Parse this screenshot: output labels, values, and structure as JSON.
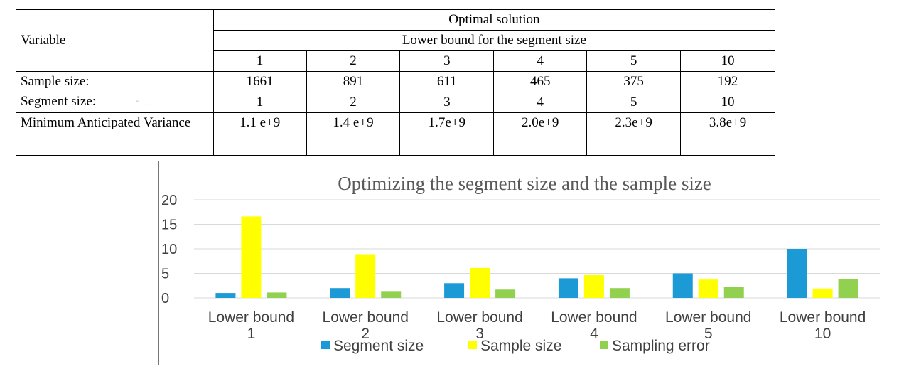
{
  "table": {
    "variable_header": "Variable",
    "optimal_header": "Optimal solution",
    "lower_bound_header": "Lower bound for the segment size",
    "bounds": [
      "1",
      "2",
      "3",
      "4",
      "5",
      "10"
    ],
    "rows": [
      {
        "label": "Sample size:",
        "mark": "\" . . . .",
        "values": [
          "1661",
          "891",
          "611",
          "465",
          "375",
          "192"
        ]
      },
      {
        "label": "Segment size:",
        "mark": "“ . . . .",
        "values": [
          "1",
          "2",
          "3",
          "4",
          "5",
          "10"
        ]
      },
      {
        "label": "Minimum Anticipated Variance",
        "values": [
          "1.1 e+9",
          "1.4 e+9",
          "1.7e+9",
          "2.0e+9",
          "2.3e+9",
          "3.8e+9"
        ]
      }
    ]
  },
  "chart_data": {
    "type": "bar",
    "title": "Optimizing the segment size and the sample size",
    "categories": [
      [
        "Lower bound",
        "1"
      ],
      [
        "Lower bound",
        "2"
      ],
      [
        "Lower bound",
        "3"
      ],
      [
        "Lower bound",
        "4"
      ],
      [
        "Lower bound",
        "5"
      ],
      [
        "Lower bound",
        "10"
      ]
    ],
    "series": [
      {
        "name": "Segment size",
        "color": "#1b9ad6",
        "values": [
          1,
          2,
          3,
          4,
          5,
          10
        ]
      },
      {
        "name": "Sample size",
        "color": "#ffff00",
        "values": [
          16.61,
          8.91,
          6.11,
          4.65,
          3.75,
          1.92
        ]
      },
      {
        "name": "Sampling error",
        "color": "#92d050",
        "values": [
          1.1,
          1.4,
          1.7,
          2.0,
          2.3,
          3.8
        ]
      }
    ],
    "ylim": [
      0,
      20
    ],
    "yticks": [
      0,
      5,
      10,
      15,
      20
    ],
    "grid": true,
    "legend": "bottom",
    "xlabel": "",
    "ylabel": ""
  }
}
